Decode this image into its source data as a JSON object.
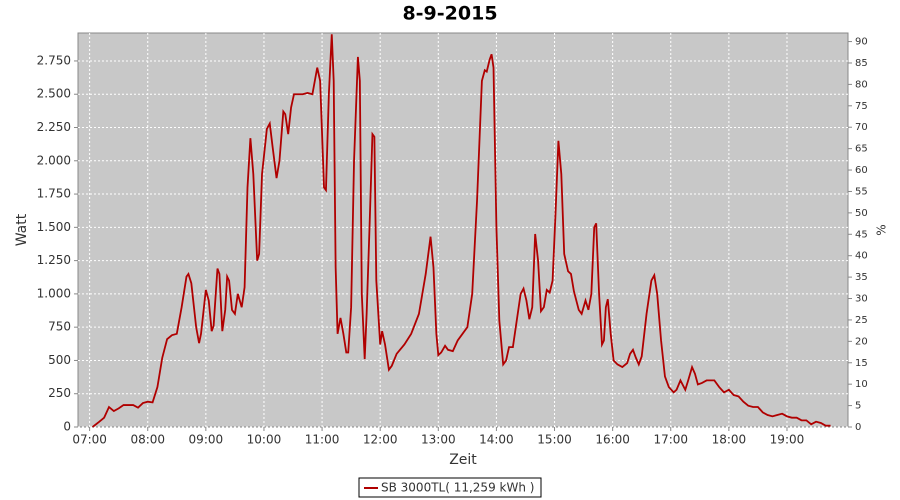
{
  "chart_data": {
    "type": "line",
    "title": "8-9-2015",
    "x_label": "Zeit",
    "y_label": "Watt",
    "y2_label": "%",
    "x": [
      "07:03",
      "07:10",
      "07:15",
      "07:20",
      "07:25",
      "07:30",
      "07:35",
      "07:45",
      "07:50",
      "07:55",
      "08:00",
      "08:05",
      "08:10",
      "08:15",
      "08:20",
      "08:25",
      "08:30",
      "08:35",
      "08:40",
      "08:42",
      "08:45",
      "08:50",
      "08:53",
      "08:55",
      "09:00",
      "09:03",
      "09:06",
      "09:08",
      "09:12",
      "09:14",
      "09:17",
      "09:20",
      "09:22",
      "09:24",
      "09:27",
      "09:30",
      "09:33",
      "09:37",
      "09:40",
      "09:43",
      "09:46",
      "09:49",
      "09:53",
      "09:55",
      "09:58",
      "10:03",
      "10:06",
      "10:09",
      "10:13",
      "10:16",
      "10:20",
      "10:22",
      "10:25",
      "10:28",
      "10:31",
      "10:35",
      "10:40",
      "10:45",
      "10:50",
      "10:55",
      "10:58",
      "11:02",
      "11:04",
      "11:07",
      "11:10",
      "11:12",
      "11:14",
      "11:16",
      "11:19",
      "11:22",
      "11:25",
      "11:27",
      "11:30",
      "11:33",
      "11:37",
      "11:39",
      "11:41",
      "11:44",
      "11:46",
      "11:49",
      "11:52",
      "11:54",
      "11:56",
      "12:00",
      "12:02",
      "12:05",
      "12:09",
      "12:12",
      "12:17",
      "12:25",
      "12:32",
      "12:40",
      "12:47",
      "12:52",
      "12:55",
      "12:58",
      "13:00",
      "13:03",
      "13:07",
      "13:10",
      "13:15",
      "13:20",
      "13:25",
      "13:30",
      "13:35",
      "13:40",
      "13:45",
      "13:48",
      "13:50",
      "13:53",
      "13:55",
      "13:57",
      "14:00",
      "14:03",
      "14:07",
      "14:10",
      "14:13",
      "14:17",
      "14:20",
      "14:25",
      "14:28",
      "14:31",
      "14:34",
      "14:37",
      "14:40",
      "14:43",
      "14:46",
      "14:49",
      "14:52",
      "14:55",
      "14:58",
      "15:01",
      "15:04",
      "15:07",
      "15:10",
      "15:14",
      "15:17",
      "15:20",
      "15:25",
      "15:28",
      "15:32",
      "15:35",
      "15:38",
      "15:41",
      "15:43",
      "15:46",
      "15:49",
      "15:51",
      "15:53",
      "15:55",
      "15:58",
      "16:01",
      "16:05",
      "16:10",
      "16:15",
      "16:18",
      "16:21",
      "16:24",
      "16:27",
      "16:30",
      "16:35",
      "16:40",
      "16:43",
      "16:46",
      "16:50",
      "16:54",
      "16:58",
      "17:03",
      "17:06",
      "17:10",
      "17:15",
      "17:18",
      "17:22",
      "17:25",
      "17:28",
      "17:32",
      "17:37",
      "17:45",
      "17:50",
      "17:55",
      "18:00",
      "18:05",
      "18:10",
      "18:15",
      "18:20",
      "18:25",
      "18:30",
      "18:35",
      "18:40",
      "18:45",
      "18:50",
      "18:55",
      "19:00",
      "19:05",
      "19:10",
      "19:15",
      "19:20",
      "19:25",
      "19:30",
      "19:35",
      "19:40",
      "19:45"
    ],
    "series": [
      {
        "name": "SB 3000TL( 11,259 kWh )",
        "color": "#b00000",
        "values": [
          0,
          40,
          70,
          150,
          120,
          140,
          165,
          165,
          145,
          180,
          190,
          185,
          300,
          520,
          660,
          690,
          700,
          900,
          1130,
          1150,
          1080,
          750,
          630,
          700,
          1030,
          950,
          720,
          760,
          1190,
          1150,
          720,
          880,
          1130,
          1100,
          880,
          850,
          1000,
          900,
          1050,
          1800,
          2170,
          1900,
          1250,
          1300,
          1900,
          2240,
          2280,
          2100,
          1870,
          2000,
          2370,
          2350,
          2200,
          2400,
          2500,
          2500,
          2500,
          2510,
          2500,
          2700,
          2600,
          1800,
          1780,
          2500,
          2950,
          2600,
          1200,
          700,
          820,
          700,
          560,
          560,
          900,
          2000,
          2780,
          2600,
          1000,
          510,
          850,
          1500,
          2200,
          2180,
          1100,
          620,
          720,
          620,
          430,
          460,
          550,
          620,
          700,
          850,
          1150,
          1430,
          1200,
          700,
          540,
          560,
          610,
          580,
          570,
          650,
          700,
          750,
          1000,
          1700,
          2600,
          2680,
          2670,
          2760,
          2800,
          2700,
          1500,
          800,
          470,
          500,
          600,
          600,
          750,
          1000,
          1040,
          950,
          810,
          900,
          1450,
          1250,
          870,
          900,
          1030,
          1010,
          1100,
          1600,
          2150,
          1900,
          1300,
          1170,
          1150,
          1020,
          880,
          850,
          950,
          880,
          1000,
          1500,
          1530,
          1000,
          620,
          650,
          900,
          960,
          700,
          500,
          470,
          450,
          480,
          550,
          580,
          520,
          470,
          530,
          850,
          1100,
          1140,
          1000,
          650,
          380,
          300,
          260,
          280,
          350,
          280,
          350,
          450,
          400,
          320,
          330,
          350,
          350,
          300,
          260,
          280,
          240,
          230,
          190,
          160,
          150,
          150,
          110,
          90,
          80,
          90,
          100,
          80,
          70,
          70,
          50,
          50,
          20,
          40,
          30,
          10,
          10
        ]
      }
    ],
    "xlim": [
      "06:48",
      "20:03"
    ],
    "xticks": [
      "07:00",
      "08:00",
      "09:00",
      "10:00",
      "11:00",
      "12:00",
      "13:00",
      "14:00",
      "15:00",
      "16:00",
      "17:00",
      "18:00",
      "19:00"
    ],
    "ylim": [
      0,
      2960
    ],
    "yticks": [
      0,
      250,
      500,
      750,
      {
        "value": 1000,
        "label": "1.000"
      },
      {
        "value": 1250,
        "label": "1.250"
      },
      {
        "value": 1500,
        "label": "1.500"
      },
      {
        "value": 1750,
        "label": "1.750"
      },
      {
        "value": 2000,
        "label": "2.000"
      },
      {
        "value": 2250,
        "label": "2.250"
      },
      {
        "value": 2500,
        "label": "2.500"
      },
      {
        "value": 2750,
        "label": "2.750"
      }
    ],
    "y2lim": [
      0,
      92
    ],
    "y2ticks": [
      0,
      5,
      10,
      15,
      20,
      25,
      30,
      35,
      40,
      45,
      50,
      55,
      60,
      65,
      70,
      75,
      80,
      85,
      90
    ],
    "grid": true
  }
}
